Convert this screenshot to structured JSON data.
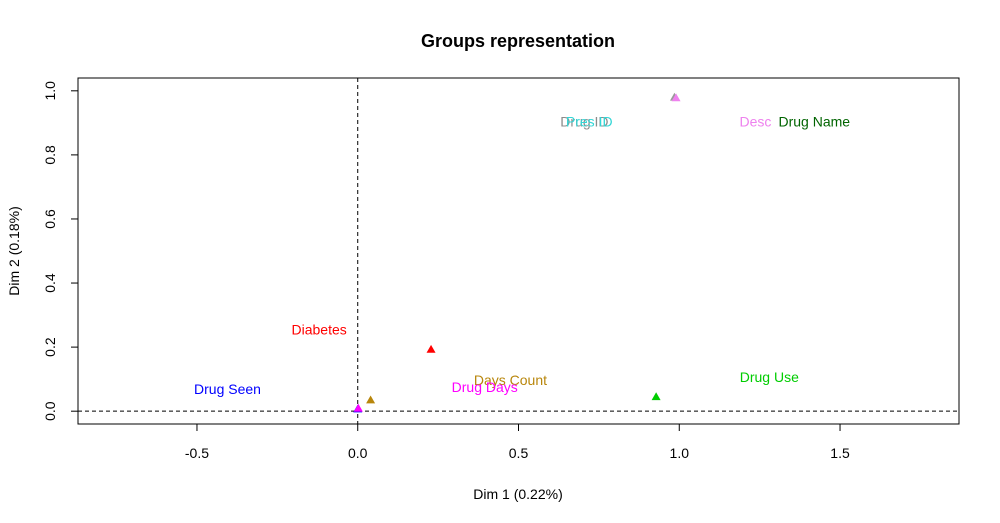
{
  "chart_data": {
    "type": "scatter",
    "title": "Groups representation",
    "xlabel": "Dim 1 (0.22%)",
    "ylabel": "Dim 2 (0.18%)",
    "xlim": [
      -0.87,
      1.87
    ],
    "ylim": [
      -0.04,
      1.04
    ],
    "x_ticks": [
      -0.5,
      0.0,
      0.5,
      1.0,
      1.5
    ],
    "x_tick_labels": [
      "-0.5",
      "0.0",
      "0.5",
      "1.0",
      "1.5"
    ],
    "y_ticks": [
      0.0,
      0.2,
      0.4,
      0.6,
      0.8,
      1.0
    ],
    "y_tick_labels": [
      "0.0",
      "0.2",
      "0.4",
      "0.6",
      "0.8",
      "1.0"
    ],
    "grid": false,
    "reference_lines": {
      "x": 0,
      "y": 0,
      "style": "dashed"
    },
    "points": [
      {
        "x": 0.985,
        "y": 0.98,
        "color": "#9a9a9a",
        "marker": "triangle"
      },
      {
        "x": 0.99,
        "y": 0.978,
        "color": "#ee82ee",
        "marker": "triangle"
      },
      {
        "x": 0.228,
        "y": 0.193,
        "color": "#ff0000",
        "marker": "triangle"
      },
      {
        "x": 0.928,
        "y": 0.045,
        "color": "#00cd00",
        "marker": "triangle"
      },
      {
        "x": 0.04,
        "y": 0.035,
        "color": "#b8860b",
        "marker": "triangle"
      },
      {
        "x": 0.0,
        "y": 0.007,
        "color": "#0000ff",
        "marker": "triangle"
      },
      {
        "x": 0.002,
        "y": 0.009,
        "color": "#ff00ff",
        "marker": "triangle"
      }
    ],
    "labels": [
      {
        "text": "Drug ID",
        "x": 0.705,
        "y": 0.905,
        "color": "#8c8c8c"
      },
      {
        "text": "Pres ID",
        "x": 0.72,
        "y": 0.905,
        "color": "#33d6d6"
      },
      {
        "text": "Desc",
        "x": 1.237,
        "y": 0.905,
        "color": "#ee82ee"
      },
      {
        "text": "Drug Name",
        "x": 1.42,
        "y": 0.905,
        "color": "#006400"
      },
      {
        "text": "Diabetes",
        "x": -0.12,
        "y": 0.255,
        "color": "#ff0000"
      },
      {
        "text": "Drug Use",
        "x": 1.28,
        "y": 0.107,
        "color": "#00cd00"
      },
      {
        "text": "Days Count",
        "x": 0.475,
        "y": 0.098,
        "color": "#b8860b"
      },
      {
        "text": "Drug Days",
        "x": 0.395,
        "y": 0.075,
        "color": "#ff00ff"
      },
      {
        "text": "Drug Seen",
        "x": -0.405,
        "y": 0.07,
        "color": "#0000ff"
      }
    ]
  }
}
